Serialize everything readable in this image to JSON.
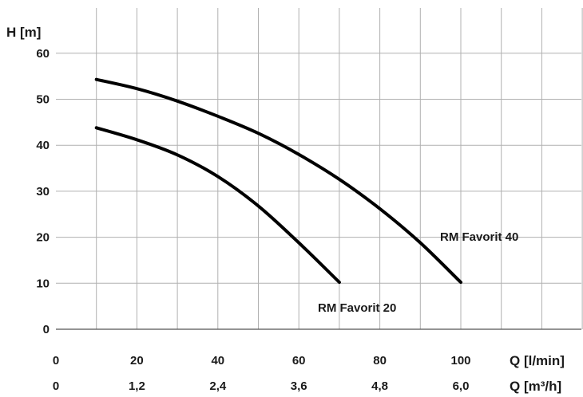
{
  "chart_data": {
    "type": "line",
    "xlabel": "Q [l/min]",
    "xlabel_secondary": "Q [m³/h]",
    "ylabel": "H [m]",
    "xlim": [
      0,
      130
    ],
    "ylim": [
      0,
      62
    ],
    "x_ticks": [
      "0",
      "20",
      "40",
      "60",
      "80",
      "100"
    ],
    "x_ticks_secondary": [
      "0",
      "1,2",
      "2,4",
      "3,6",
      "4,8",
      "6,0"
    ],
    "y_ticks": [
      "0",
      "10",
      "20",
      "30",
      "40",
      "50",
      "60"
    ],
    "grid": true,
    "series": [
      {
        "name": "RM Favorit 40",
        "x": [
          10,
          20,
          30,
          40,
          50,
          60,
          70,
          80,
          90,
          100
        ],
        "y": [
          54.3,
          52.3,
          49.6,
          46.3,
          42.6,
          38.0,
          32.6,
          26.2,
          18.8,
          10.2
        ]
      },
      {
        "name": "RM Favorit 20",
        "x": [
          10,
          20,
          30,
          40,
          50,
          60,
          70
        ],
        "y": [
          43.8,
          41.2,
          37.9,
          33.2,
          26.8,
          18.8,
          10.2
        ]
      }
    ]
  }
}
